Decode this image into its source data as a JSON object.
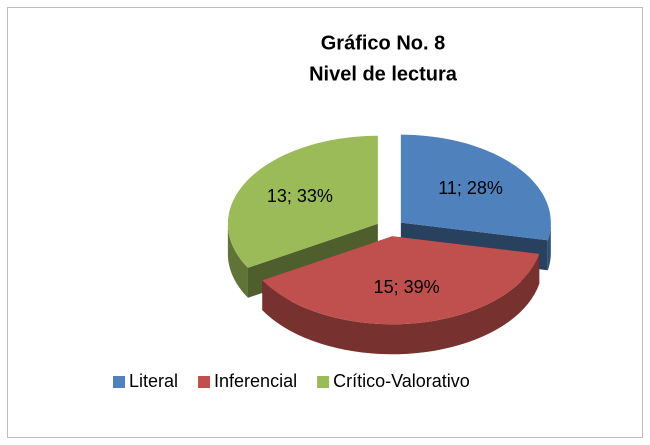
{
  "chart_data": {
    "type": "pie",
    "title": "Gráfico No. 8",
    "subtitle": "Nivel de lectura",
    "categories": [
      "Literal",
      "Inferencial",
      "Crítico-Valorativo"
    ],
    "values": [
      11,
      15,
      13
    ],
    "value_labels": [
      "11; 28%",
      "15; 39%",
      "13; 33%"
    ],
    "colors": [
      "#4f81bd",
      "#c0504d",
      "#9bbb59"
    ],
    "legend": "bottom"
  }
}
